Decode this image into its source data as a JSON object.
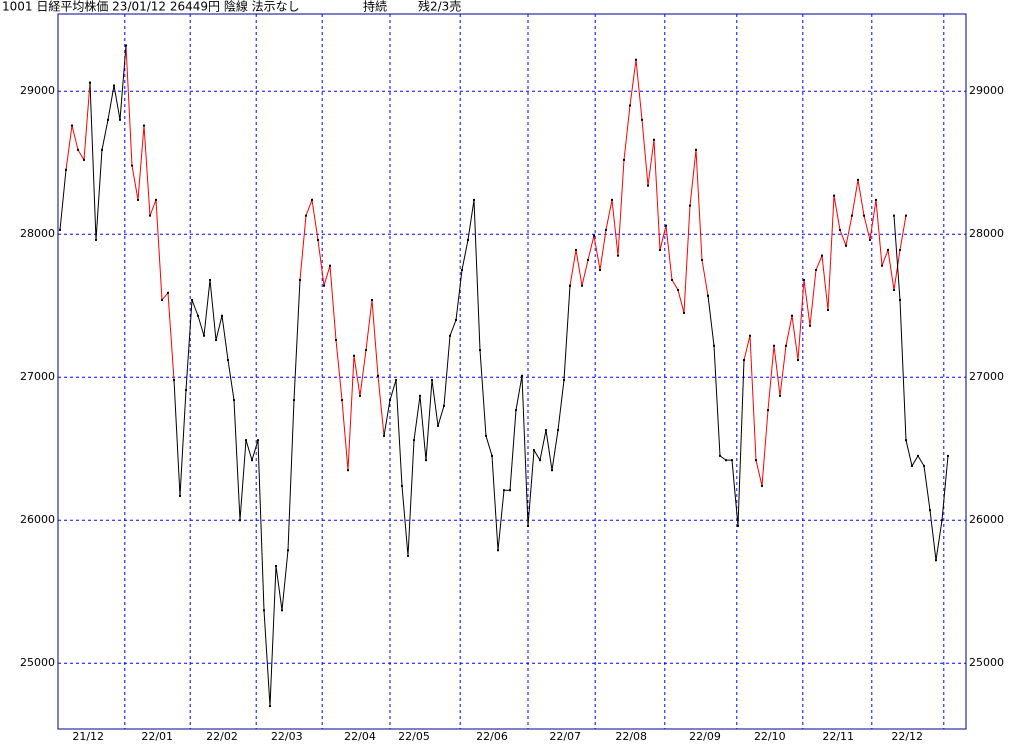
{
  "chart_data": {
    "type": "line",
    "title": "1001 日経平均株価 23/01/12 26449円 陰線 法示なし",
    "status": "持続",
    "position": "残2/3売",
    "ylim": [
      24540,
      29540
    ],
    "yticks": [
      25000,
      26000,
      27000,
      28000,
      29000
    ],
    "xlim": [
      0,
      150
    ],
    "xgrid": [
      10.8,
      21.7,
      32.7,
      43.7,
      55,
      66.7,
      78,
      89.2,
      100.8,
      112.8,
      123.8,
      135.3,
      147.3
    ],
    "xticks": [
      {
        "value": 4.7,
        "label": "21/12"
      },
      {
        "value": 16.2,
        "label": "22/01"
      },
      {
        "value": 27,
        "label": "22/02"
      },
      {
        "value": 37.8,
        "label": "22/03"
      },
      {
        "value": 50,
        "label": "22/04"
      },
      {
        "value": 59,
        "label": "22/05"
      },
      {
        "value": 72,
        "label": "22/06"
      },
      {
        "value": 84.2,
        "label": "22/07"
      },
      {
        "value": 95.2,
        "label": "22/08"
      },
      {
        "value": 107.5,
        "label": "22/09"
      },
      {
        "value": 118.3,
        "label": "22/10"
      },
      {
        "value": 129.7,
        "label": "22/11"
      },
      {
        "value": 141.2,
        "label": "22/12"
      }
    ],
    "grid": true,
    "grid_color": "#0000ff",
    "frame_color": "#000090",
    "point_color": "#000000",
    "series": [
      {
        "color": "#ff0000",
        "values": [
          null,
          28450,
          28760,
          28590,
          28520,
          29060,
          null,
          null,
          null,
          null,
          null,
          29320,
          28480,
          28240,
          28760,
          28130,
          28240,
          27540,
          27590,
          26980,
          null,
          null,
          null,
          null,
          null,
          null,
          null,
          null,
          null,
          null,
          null,
          null,
          null,
          null,
          null,
          null,
          null,
          null,
          null,
          null,
          27680,
          28130,
          28240,
          27960,
          27640,
          27780,
          27260,
          26840,
          26350,
          27150,
          26870,
          27190,
          27540,
          27010,
          26590,
          null,
          null,
          null,
          null,
          null,
          null,
          null,
          null,
          null,
          null,
          null,
          null,
          null,
          null,
          null,
          null,
          null,
          null,
          null,
          null,
          null,
          null,
          null,
          null,
          null,
          null,
          null,
          null,
          null,
          null,
          27640,
          27890,
          27640,
          27820,
          27990,
          27750,
          28030,
          28240,
          27850,
          28520,
          28900,
          29220,
          28800,
          28340,
          28660,
          27890,
          28060,
          27680,
          27610,
          27450,
          28200,
          28590,
          27820,
          27570,
          null,
          null,
          null,
          null,
          null,
          27120,
          27290,
          26420,
          26240,
          26770,
          27220,
          26870,
          27220,
          27430,
          27120,
          27680,
          27360,
          27750,
          27850,
          27470,
          28270,
          28030,
          27920,
          28130,
          28380,
          28130,
          27960,
          28240,
          27780,
          27890,
          27610,
          27890,
          28130,
          null,
          null,
          null,
          null,
          null,
          null,
          null,
          null,
          null
        ]
      },
      {
        "color": "#000000",
        "values": [
          28030,
          28450,
          null,
          null,
          null,
          29060,
          27960,
          28590,
          28800,
          29040,
          28800,
          29320,
          null,
          null,
          null,
          null,
          null,
          null,
          null,
          26980,
          26170,
          26910,
          27540,
          27430,
          27290,
          27680,
          27260,
          27430,
          27120,
          26840,
          26000,
          26560,
          26420,
          26560,
          25370,
          24700,
          25680,
          25370,
          25790,
          26840,
          27680,
          null,
          null,
          null,
          null,
          null,
          null,
          null,
          null,
          null,
          null,
          null,
          null,
          null,
          26590,
          26840,
          26980,
          26240,
          25750,
          26560,
          26870,
          26420,
          26980,
          26660,
          26800,
          27290,
          27400,
          27750,
          27960,
          28240,
          27190,
          26590,
          26450,
          25790,
          26210,
          26210,
          26770,
          27010,
          25960,
          26490,
          26420,
          26630,
          26350,
          26630,
          26980,
          27640,
          null,
          null,
          null,
          null,
          null,
          null,
          null,
          null,
          null,
          null,
          null,
          null,
          null,
          null,
          null,
          null,
          null,
          null,
          null,
          null,
          null,
          null,
          27570,
          27220,
          26450,
          26420,
          26420,
          25960,
          27120,
          null,
          null,
          null,
          null,
          null,
          null,
          null,
          null,
          null,
          null,
          null,
          null,
          null,
          null,
          null,
          null,
          null,
          null,
          null,
          null,
          null,
          null,
          null,
          null,
          28130,
          27540,
          26560,
          26380,
          26450,
          26380,
          26070,
          25720,
          26000,
          26450
        ]
      }
    ]
  }
}
